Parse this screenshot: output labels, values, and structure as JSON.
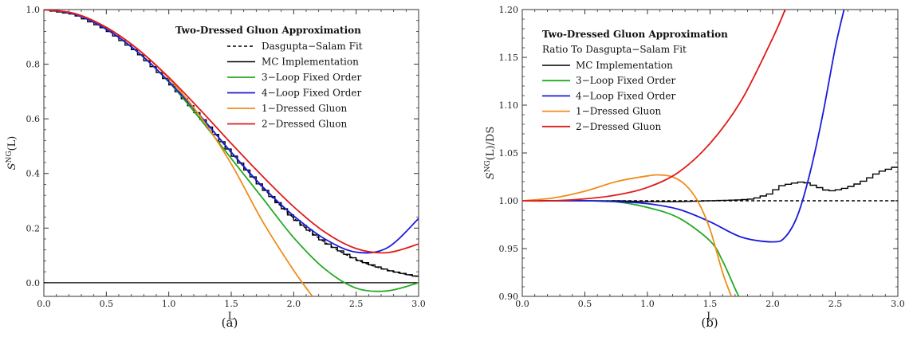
{
  "charts": [
    {
      "id": "a",
      "caption": "(a)",
      "type": "line",
      "xlabel": "L",
      "ylabel_main": "S",
      "ylabel_sup": "NG",
      "ylabel_tail": "(L)",
      "xlim": [
        0,
        3
      ],
      "ylim": [
        -0.05,
        1.0
      ],
      "xticks": [
        0,
        0.5,
        1,
        1.5,
        2,
        2.5,
        3
      ],
      "xtick_labels": [
        "0.0",
        "0.5",
        "1.0",
        "1.5",
        "2.0",
        "2.5",
        "3.0"
      ],
      "yticks": [
        0,
        0.2,
        0.4,
        0.6,
        0.8,
        1.0
      ],
      "ytick_labels": [
        "0.0",
        "0.2",
        "0.4",
        "0.6",
        "0.8",
        "1.0"
      ],
      "legend_title": "Two-Dressed Gluon Approximation",
      "legend_subtitle": "",
      "legend_placement": "top-right",
      "series": [
        {
          "name": "Dasgupta−Salam Fit",
          "color": "#000000",
          "style": "dashed",
          "x": [
            0,
            0.25,
            0.5,
            0.75,
            1,
            1.25,
            1.5,
            1.75,
            2,
            2.25,
            2.5,
            2.75,
            3
          ],
          "y": [
            1.0,
            0.982,
            0.928,
            0.845,
            0.737,
            0.61,
            0.476,
            0.349,
            0.237,
            0.148,
            0.085,
            0.046,
            0.022
          ]
        },
        {
          "name": "MC Implementation",
          "color": "#000000",
          "style": "step",
          "x": [
            0,
            0.25,
            0.5,
            0.75,
            1,
            1.25,
            1.5,
            1.75,
            2,
            2.25,
            2.5,
            2.75,
            3
          ],
          "y": [
            1.0,
            0.982,
            0.928,
            0.845,
            0.737,
            0.61,
            0.476,
            0.349,
            0.237,
            0.148,
            0.085,
            0.046,
            0.022
          ]
        },
        {
          "name": "3−Loop Fixed Order",
          "color": "#22aa22",
          "style": "solid",
          "x": [
            0,
            0.25,
            0.5,
            0.75,
            1,
            1.25,
            1.5,
            1.75,
            2,
            2.25,
            2.5,
            2.75,
            3
          ],
          "y": [
            1.0,
            0.982,
            0.928,
            0.845,
            0.735,
            0.6,
            0.455,
            0.31,
            0.165,
            0.05,
            -0.02,
            -0.03,
            0.0
          ]
        },
        {
          "name": "4−Loop Fixed Order",
          "color": "#1a1adc",
          "style": "solid",
          "x": [
            0,
            0.25,
            0.5,
            0.75,
            1,
            1.25,
            1.5,
            1.75,
            2,
            2.25,
            2.5,
            2.75,
            3
          ],
          "y": [
            1.0,
            0.982,
            0.928,
            0.845,
            0.737,
            0.612,
            0.478,
            0.352,
            0.245,
            0.16,
            0.112,
            0.128,
            0.235
          ]
        },
        {
          "name": "1−Dressed Gluon",
          "color": "#f08c1a",
          "style": "solid",
          "x": [
            0,
            0.25,
            0.5,
            0.75,
            1,
            1.25,
            1.5,
            1.75,
            2,
            2.15
          ],
          "y": [
            1.0,
            0.985,
            0.935,
            0.855,
            0.748,
            0.61,
            0.435,
            0.225,
            0.045,
            -0.05
          ]
        },
        {
          "name": "2−Dressed Gluon",
          "color": "#e01a1a",
          "style": "solid",
          "x": [
            0,
            0.25,
            0.5,
            0.75,
            1,
            1.25,
            1.5,
            1.75,
            2,
            2.25,
            2.5,
            2.75,
            3
          ],
          "y": [
            1.0,
            0.985,
            0.935,
            0.856,
            0.752,
            0.634,
            0.51,
            0.39,
            0.278,
            0.185,
            0.125,
            0.11,
            0.142
          ]
        }
      ]
    },
    {
      "id": "b",
      "caption": "(b)",
      "type": "line",
      "xlabel": "L",
      "ylabel_main": "S",
      "ylabel_sup": "NG",
      "ylabel_tail": "(L)/DS",
      "xlim": [
        0,
        3
      ],
      "ylim": [
        0.9,
        1.2
      ],
      "xticks": [
        0,
        0.5,
        1,
        1.5,
        2,
        2.5,
        3
      ],
      "xtick_labels": [
        "0.0",
        "0.5",
        "1.0",
        "1.5",
        "2.0",
        "2.5",
        "3.0"
      ],
      "yticks": [
        0.9,
        0.95,
        1.0,
        1.05,
        1.1,
        1.15,
        1.2
      ],
      "ytick_labels": [
        "0.90",
        "0.95",
        "1.00",
        "1.05",
        "1.10",
        "1.15",
        "1.20"
      ],
      "legend_title": "Two-Dressed Gluon Approximation",
      "legend_subtitle": "Ratio To Dasgupta−Salam Fit",
      "legend_placement": "top-left",
      "series": [
        {
          "name": "",
          "color": "#000000",
          "style": "dashed",
          "x": [
            0,
            3
          ],
          "y": [
            1.0,
            1.0
          ]
        },
        {
          "name": "MC Implementation",
          "color": "#000000",
          "style": "step",
          "x": [
            0,
            0.25,
            0.5,
            0.75,
            1,
            1.25,
            1.5,
            1.75,
            1.85,
            2.0,
            2.05,
            2.15,
            2.25,
            2.35,
            2.45,
            2.55,
            2.65,
            2.75,
            2.85,
            2.95,
            3.0
          ],
          "y": [
            1.0,
            1.0,
            1.0,
            1.0,
            0.999,
            0.999,
            1.0,
            1.001,
            1.002,
            1.008,
            1.015,
            1.018,
            1.02,
            1.015,
            1.01,
            1.012,
            1.016,
            1.022,
            1.03,
            1.034,
            1.036
          ]
        },
        {
          "name": "3−Loop Fixed Order",
          "color": "#22aa22",
          "style": "solid",
          "x": [
            0,
            0.25,
            0.5,
            0.75,
            1,
            1.25,
            1.5,
            1.6,
            1.7,
            1.73
          ],
          "y": [
            1.0,
            1.0,
            1.0,
            0.999,
            0.993,
            0.982,
            0.958,
            0.937,
            0.908,
            0.9
          ]
        },
        {
          "name": "4−Loop Fixed Order",
          "color": "#1a1adc",
          "style": "solid",
          "x": [
            0,
            0.25,
            0.5,
            0.75,
            1,
            1.25,
            1.5,
            1.75,
            2,
            2.1,
            2.2,
            2.3,
            2.4,
            2.5,
            2.57
          ],
          "y": [
            1.0,
            1.0,
            1.0,
            0.999,
            0.997,
            0.991,
            0.978,
            0.962,
            0.957,
            0.962,
            0.985,
            1.03,
            1.09,
            1.16,
            1.2
          ]
        },
        {
          "name": "1−Dressed Gluon",
          "color": "#f08c1a",
          "style": "solid",
          "x": [
            0,
            0.25,
            0.5,
            0.75,
            1,
            1.1,
            1.2,
            1.3,
            1.4,
            1.5,
            1.6,
            1.67
          ],
          "y": [
            1.0,
            1.003,
            1.01,
            1.02,
            1.026,
            1.027,
            1.025,
            1.017,
            1.0,
            0.97,
            0.925,
            0.9
          ]
        },
        {
          "name": "2−Dressed Gluon",
          "color": "#e01a1a",
          "style": "solid",
          "x": [
            0,
            0.25,
            0.5,
            0.75,
            1,
            1.25,
            1.5,
            1.75,
            2,
            2.1
          ],
          "y": [
            1.0,
            1.0,
            1.002,
            1.006,
            1.014,
            1.03,
            1.06,
            1.105,
            1.17,
            1.2
          ]
        }
      ]
    }
  ]
}
